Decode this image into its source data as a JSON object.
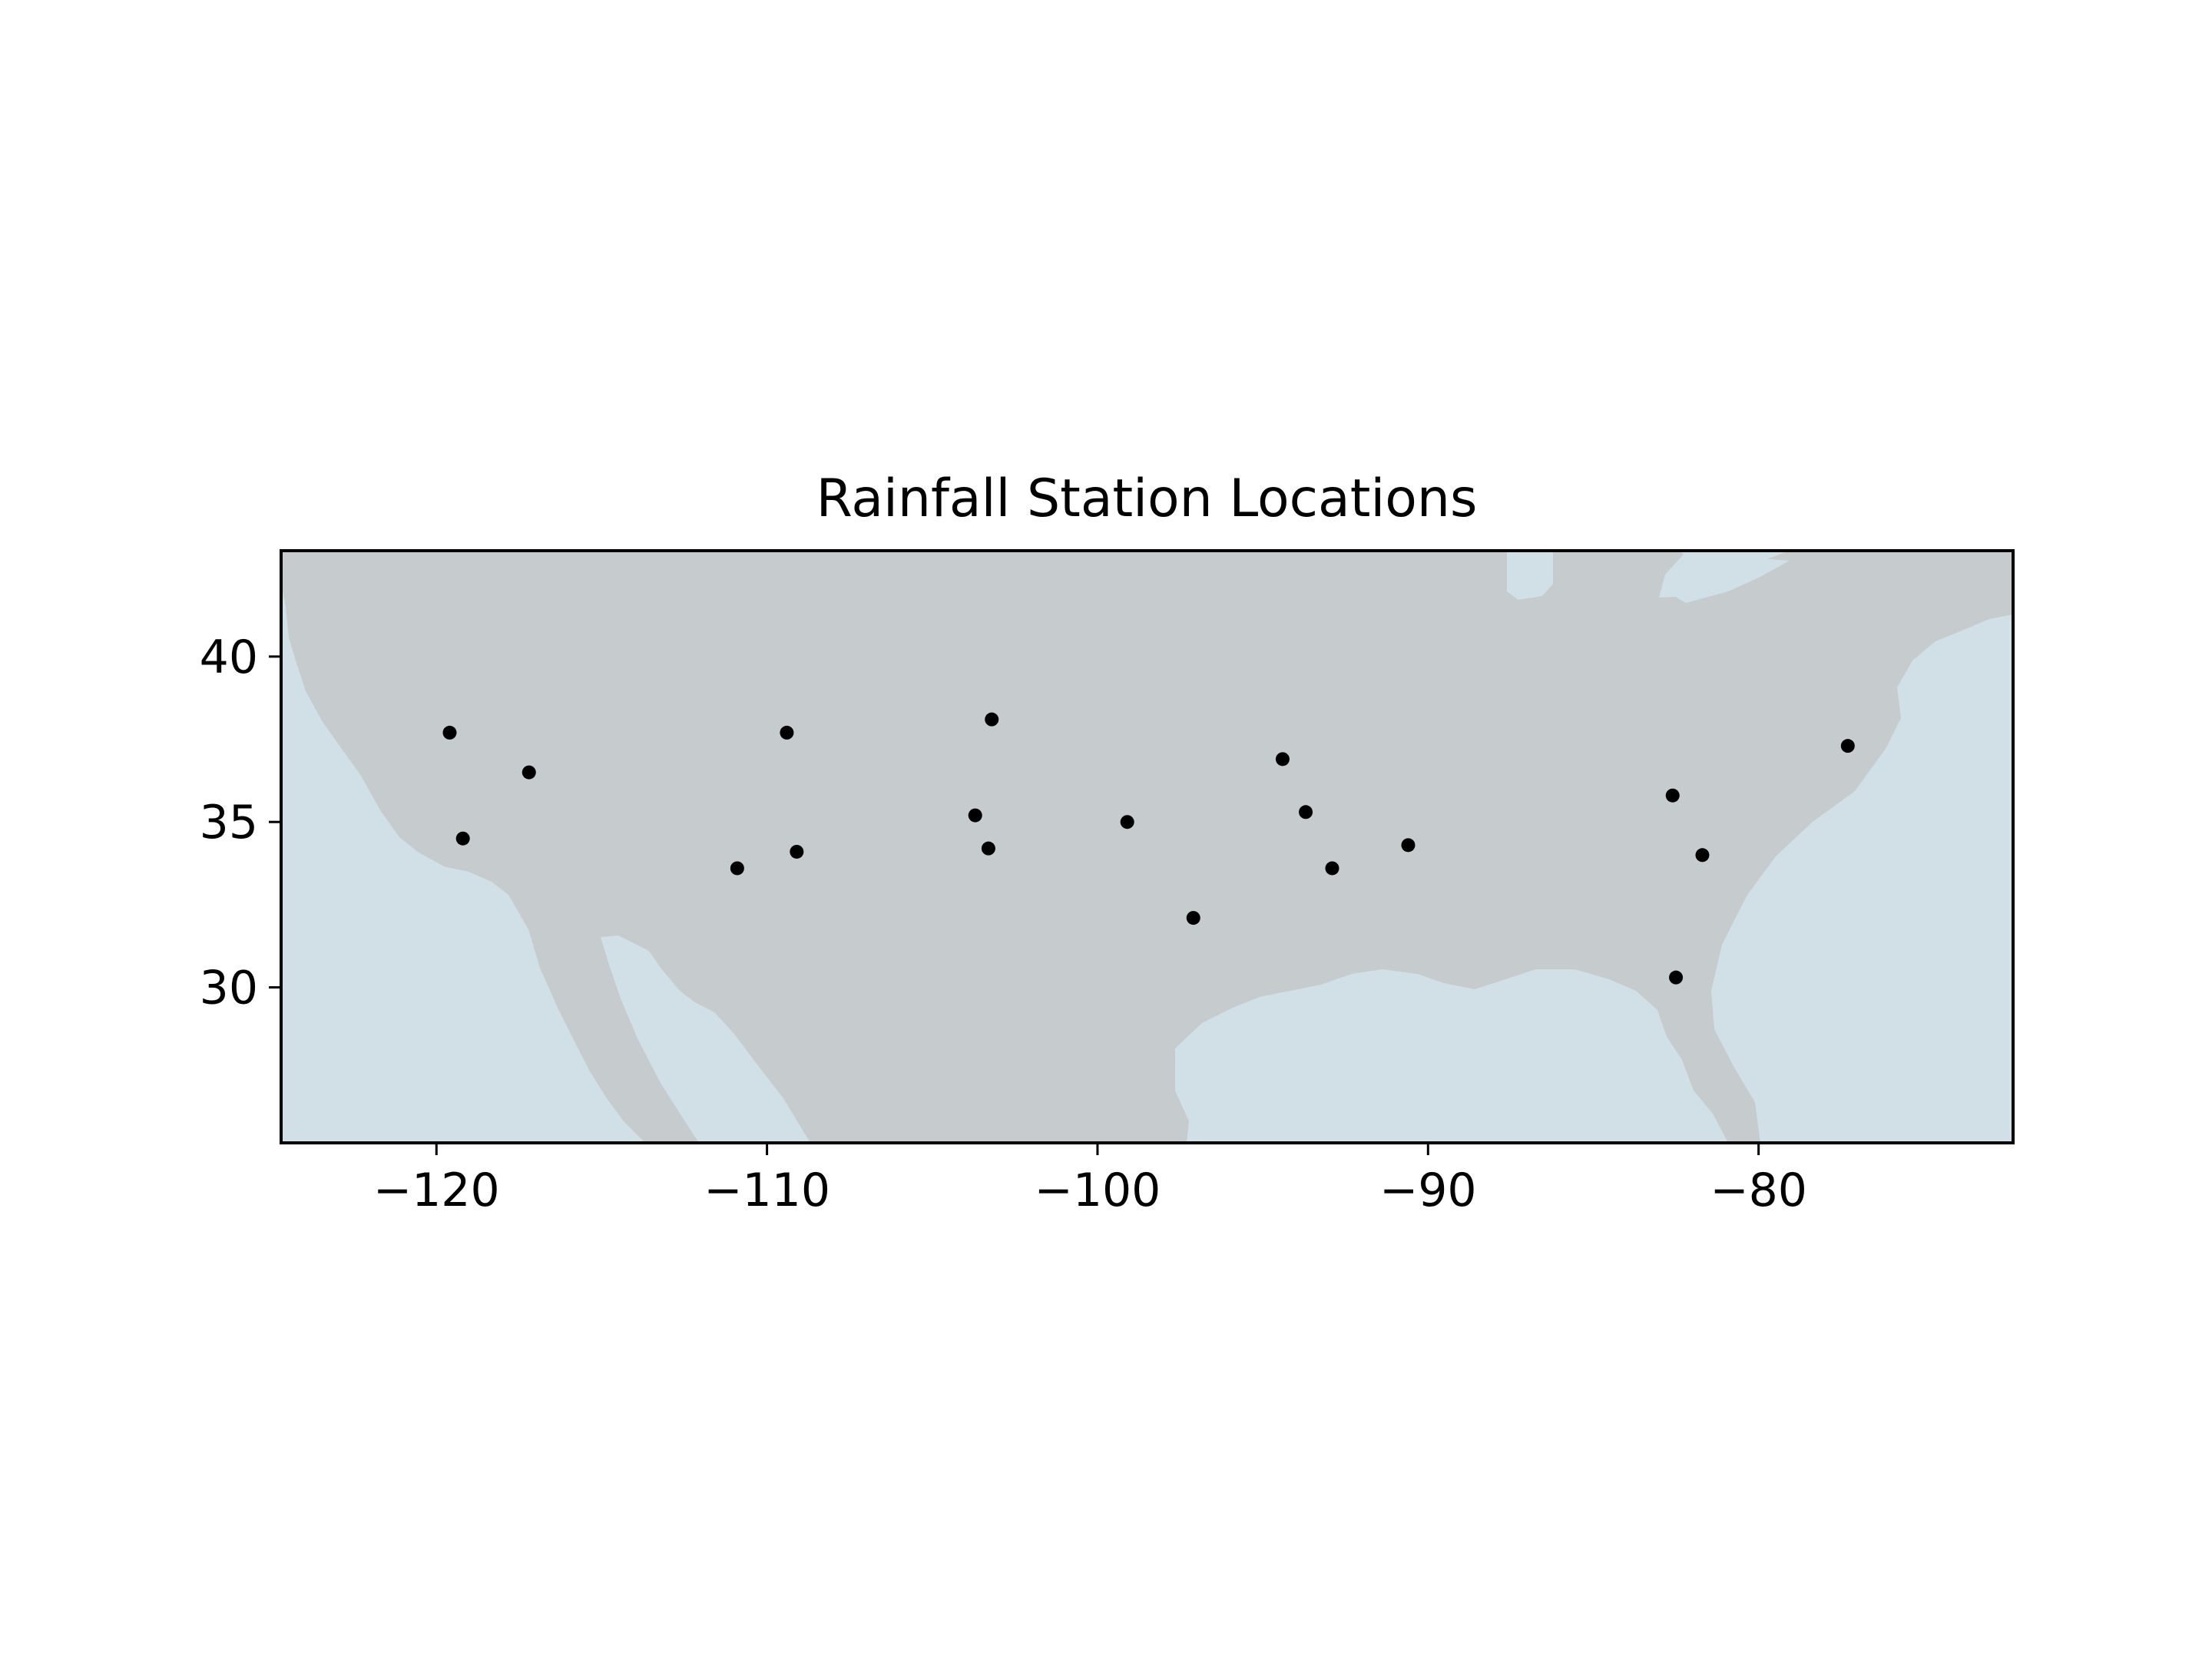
{
  "chart_data": {
    "type": "scatter",
    "title": "Rainfall Station Locations",
    "xlabel": "",
    "ylabel": "",
    "xlim": [
      -124.7,
      -72.3
    ],
    "ylim": [
      25.3,
      43.2
    ],
    "xticks": [
      -120,
      -110,
      -100,
      -90,
      -80
    ],
    "xtick_labels": [
      "−120",
      "−110",
      "−100",
      "−90",
      "−80"
    ],
    "yticks": [
      30,
      35,
      40
    ],
    "ytick_labels": [
      "30",
      "35",
      "40"
    ],
    "grid": false,
    "legend": "none",
    "colors": {
      "land": "#c6cbce",
      "water": "#d1e0e7",
      "marker": "#000000",
      "frame": "#000000"
    },
    "points": [
      {
        "x": -119.6,
        "y": 37.7
      },
      {
        "x": -117.2,
        "y": 36.5
      },
      {
        "x": -119.2,
        "y": 34.5
      },
      {
        "x": -109.4,
        "y": 37.7
      },
      {
        "x": -110.9,
        "y": 33.6
      },
      {
        "x": -109.1,
        "y": 34.1
      },
      {
        "x": -103.2,
        "y": 38.1
      },
      {
        "x": -103.7,
        "y": 35.2
      },
      {
        "x": -103.3,
        "y": 34.2
      },
      {
        "x": -99.1,
        "y": 35.0
      },
      {
        "x": -97.1,
        "y": 32.1
      },
      {
        "x": -94.4,
        "y": 36.9
      },
      {
        "x": -93.7,
        "y": 35.3
      },
      {
        "x": -92.9,
        "y": 33.6
      },
      {
        "x": -90.6,
        "y": 34.3
      },
      {
        "x": -82.6,
        "y": 35.8
      },
      {
        "x": -81.7,
        "y": 34.0
      },
      {
        "x": -82.5,
        "y": 30.3
      },
      {
        "x": -77.3,
        "y": 37.3
      }
    ]
  }
}
